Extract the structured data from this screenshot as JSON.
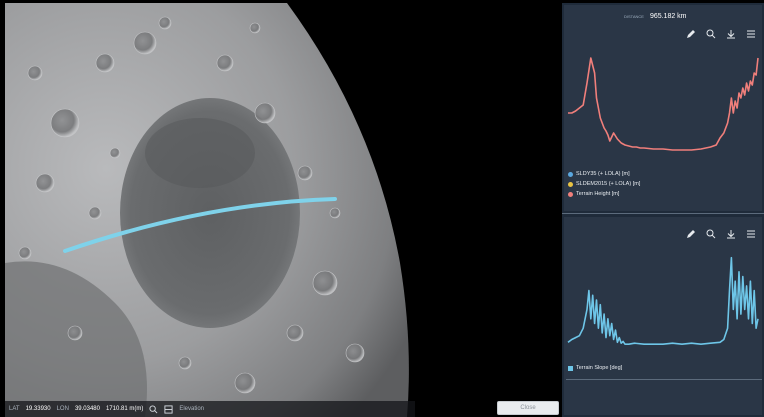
{
  "colors": {
    "profile_line": "#7fd2ea",
    "terrain_height": "#f07f7b",
    "slope": "#6ec6e8",
    "legend_blue": "#5aa8e0",
    "legend_yellow": "#e9c343",
    "panel_bg": "#1f2b3a"
  },
  "coordinates": {
    "lat_label": "LAT",
    "lat_value": "19.33930",
    "lon_label": "LON",
    "lon_value": "39.03480",
    "height_value": "1710.81 m(m)",
    "zoom_icon": "magnify-icon",
    "layers_icon": "layers-icon",
    "extra_label": "Elevation"
  },
  "close_button": {
    "label": "Close"
  },
  "chart1": {
    "distance_label": "DISTANCE",
    "distance_value": "965.182 km",
    "toolbar": [
      "pencil-icon",
      "zoom-icon",
      "download-icon",
      "menu-icon"
    ],
    "legend": [
      {
        "label": "SLDY35 (+ LOLA) [m]",
        "color": "#5aa8e0",
        "shape": "dot"
      },
      {
        "label": "SLDEM2015 (+ LOLA) [m]",
        "color": "#e9c343",
        "shape": "dot"
      },
      {
        "label": "Terrain Height [m]",
        "color": "#f07f7b",
        "shape": "dot"
      }
    ]
  },
  "chart2": {
    "toolbar": [
      "pencil-icon",
      "zoom-icon",
      "download-icon",
      "menu-icon"
    ],
    "legend": [
      {
        "label": "Terrain Slope [deg]",
        "color": "#6ec6e8",
        "shape": "square"
      }
    ]
  },
  "chart_data": [
    {
      "type": "line",
      "series": [
        {
          "name": "Terrain Height [m]",
          "color": "#f07f7b",
          "x": [
            0,
            2,
            4,
            6,
            8,
            10,
            12,
            14,
            15,
            16,
            17,
            18,
            19,
            20,
            21,
            22,
            24,
            26,
            28,
            30,
            32,
            34,
            36,
            38,
            40,
            45,
            50,
            55,
            60,
            65,
            70,
            75,
            78,
            80,
            82,
            84,
            85,
            86,
            87,
            88,
            89,
            90,
            91,
            92,
            93,
            94,
            95,
            96,
            97,
            98,
            99,
            100
          ],
          "y": [
            40,
            40,
            42,
            45,
            48,
            70,
            95,
            80,
            55,
            45,
            35,
            30,
            25,
            22,
            18,
            12,
            20,
            14,
            10,
            8,
            7,
            6,
            6,
            5,
            5,
            4,
            4,
            3,
            3,
            3,
            4,
            6,
            8,
            15,
            20,
            30,
            40,
            55,
            40,
            52,
            45,
            60,
            55,
            65,
            58,
            70,
            62,
            72,
            68,
            80,
            78,
            95
          ]
        }
      ],
      "ylim": [
        0,
        100
      ],
      "xlim": [
        0,
        100
      ]
    },
    {
      "type": "line",
      "series": [
        {
          "name": "Terrain Slope [deg]",
          "color": "#6ec6e8",
          "x": [
            0,
            2,
            4,
            6,
            8,
            10,
            11,
            12,
            13,
            14,
            15,
            16,
            17,
            18,
            19,
            20,
            21,
            22,
            23,
            24,
            25,
            26,
            27,
            28,
            29,
            30,
            32,
            35,
            40,
            45,
            50,
            55,
            60,
            65,
            70,
            75,
            80,
            82,
            84,
            85,
            86,
            87,
            88,
            89,
            90,
            91,
            92,
            93,
            94,
            95,
            96,
            97,
            98,
            99,
            100
          ],
          "y": [
            5,
            8,
            10,
            12,
            20,
            40,
            60,
            30,
            55,
            25,
            50,
            20,
            45,
            15,
            35,
            10,
            30,
            12,
            25,
            8,
            18,
            5,
            10,
            4,
            6,
            3,
            3,
            4,
            3,
            3,
            3,
            4,
            3,
            4,
            3,
            4,
            5,
            8,
            20,
            60,
            95,
            40,
            70,
            30,
            80,
            35,
            75,
            40,
            65,
            30,
            70,
            25,
            60,
            20,
            30
          ]
        }
      ],
      "ylim": [
        0,
        100
      ],
      "xlim": [
        0,
        100
      ]
    }
  ]
}
